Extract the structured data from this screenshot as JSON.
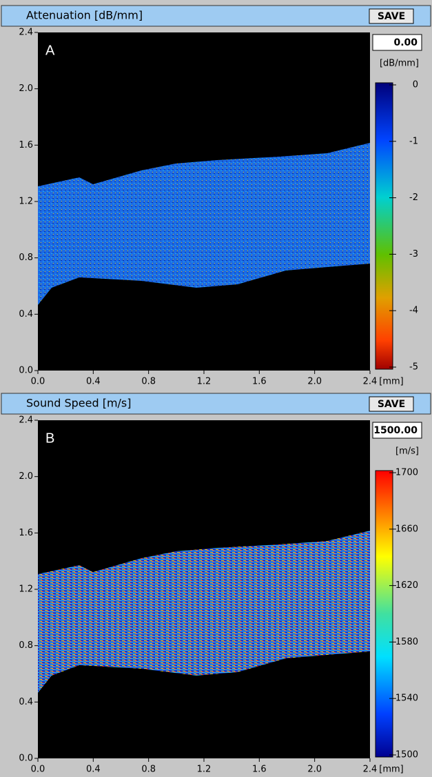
{
  "panels": [
    {
      "title": "Attenuation [dB/mm]",
      "button": "SAVE",
      "letter": "A",
      "value": "0.00",
      "unit": "[dB/mm]",
      "x_unit": "[mm]",
      "x_ticks": [
        "0.0",
        "0.4",
        "0.8",
        "1.2",
        "1.6",
        "2.0",
        "2.4"
      ],
      "y_ticks": [
        "0.0",
        "0.4",
        "0.8",
        "1.2",
        "1.6",
        "2.0",
        "2.4"
      ],
      "colorbar_ticks": [
        "0",
        "-1",
        "-2",
        "-3",
        "-4",
        "-5"
      ]
    },
    {
      "title": "Sound Speed [m/s]",
      "button": "SAVE",
      "letter": "B",
      "value": "1500.00",
      "unit": "[m/s]",
      "x_unit": "[mm]",
      "x_ticks": [
        "0.0",
        "0.4",
        "0.8",
        "1.2",
        "1.6",
        "2.0",
        "2.4"
      ],
      "y_ticks": [
        "0.0",
        "0.4",
        "0.8",
        "1.2",
        "1.6",
        "2.0",
        "2.4"
      ],
      "colorbar_ticks": [
        "1700",
        "1660",
        "1620",
        "1580",
        "1540",
        "1500"
      ]
    }
  ]
}
